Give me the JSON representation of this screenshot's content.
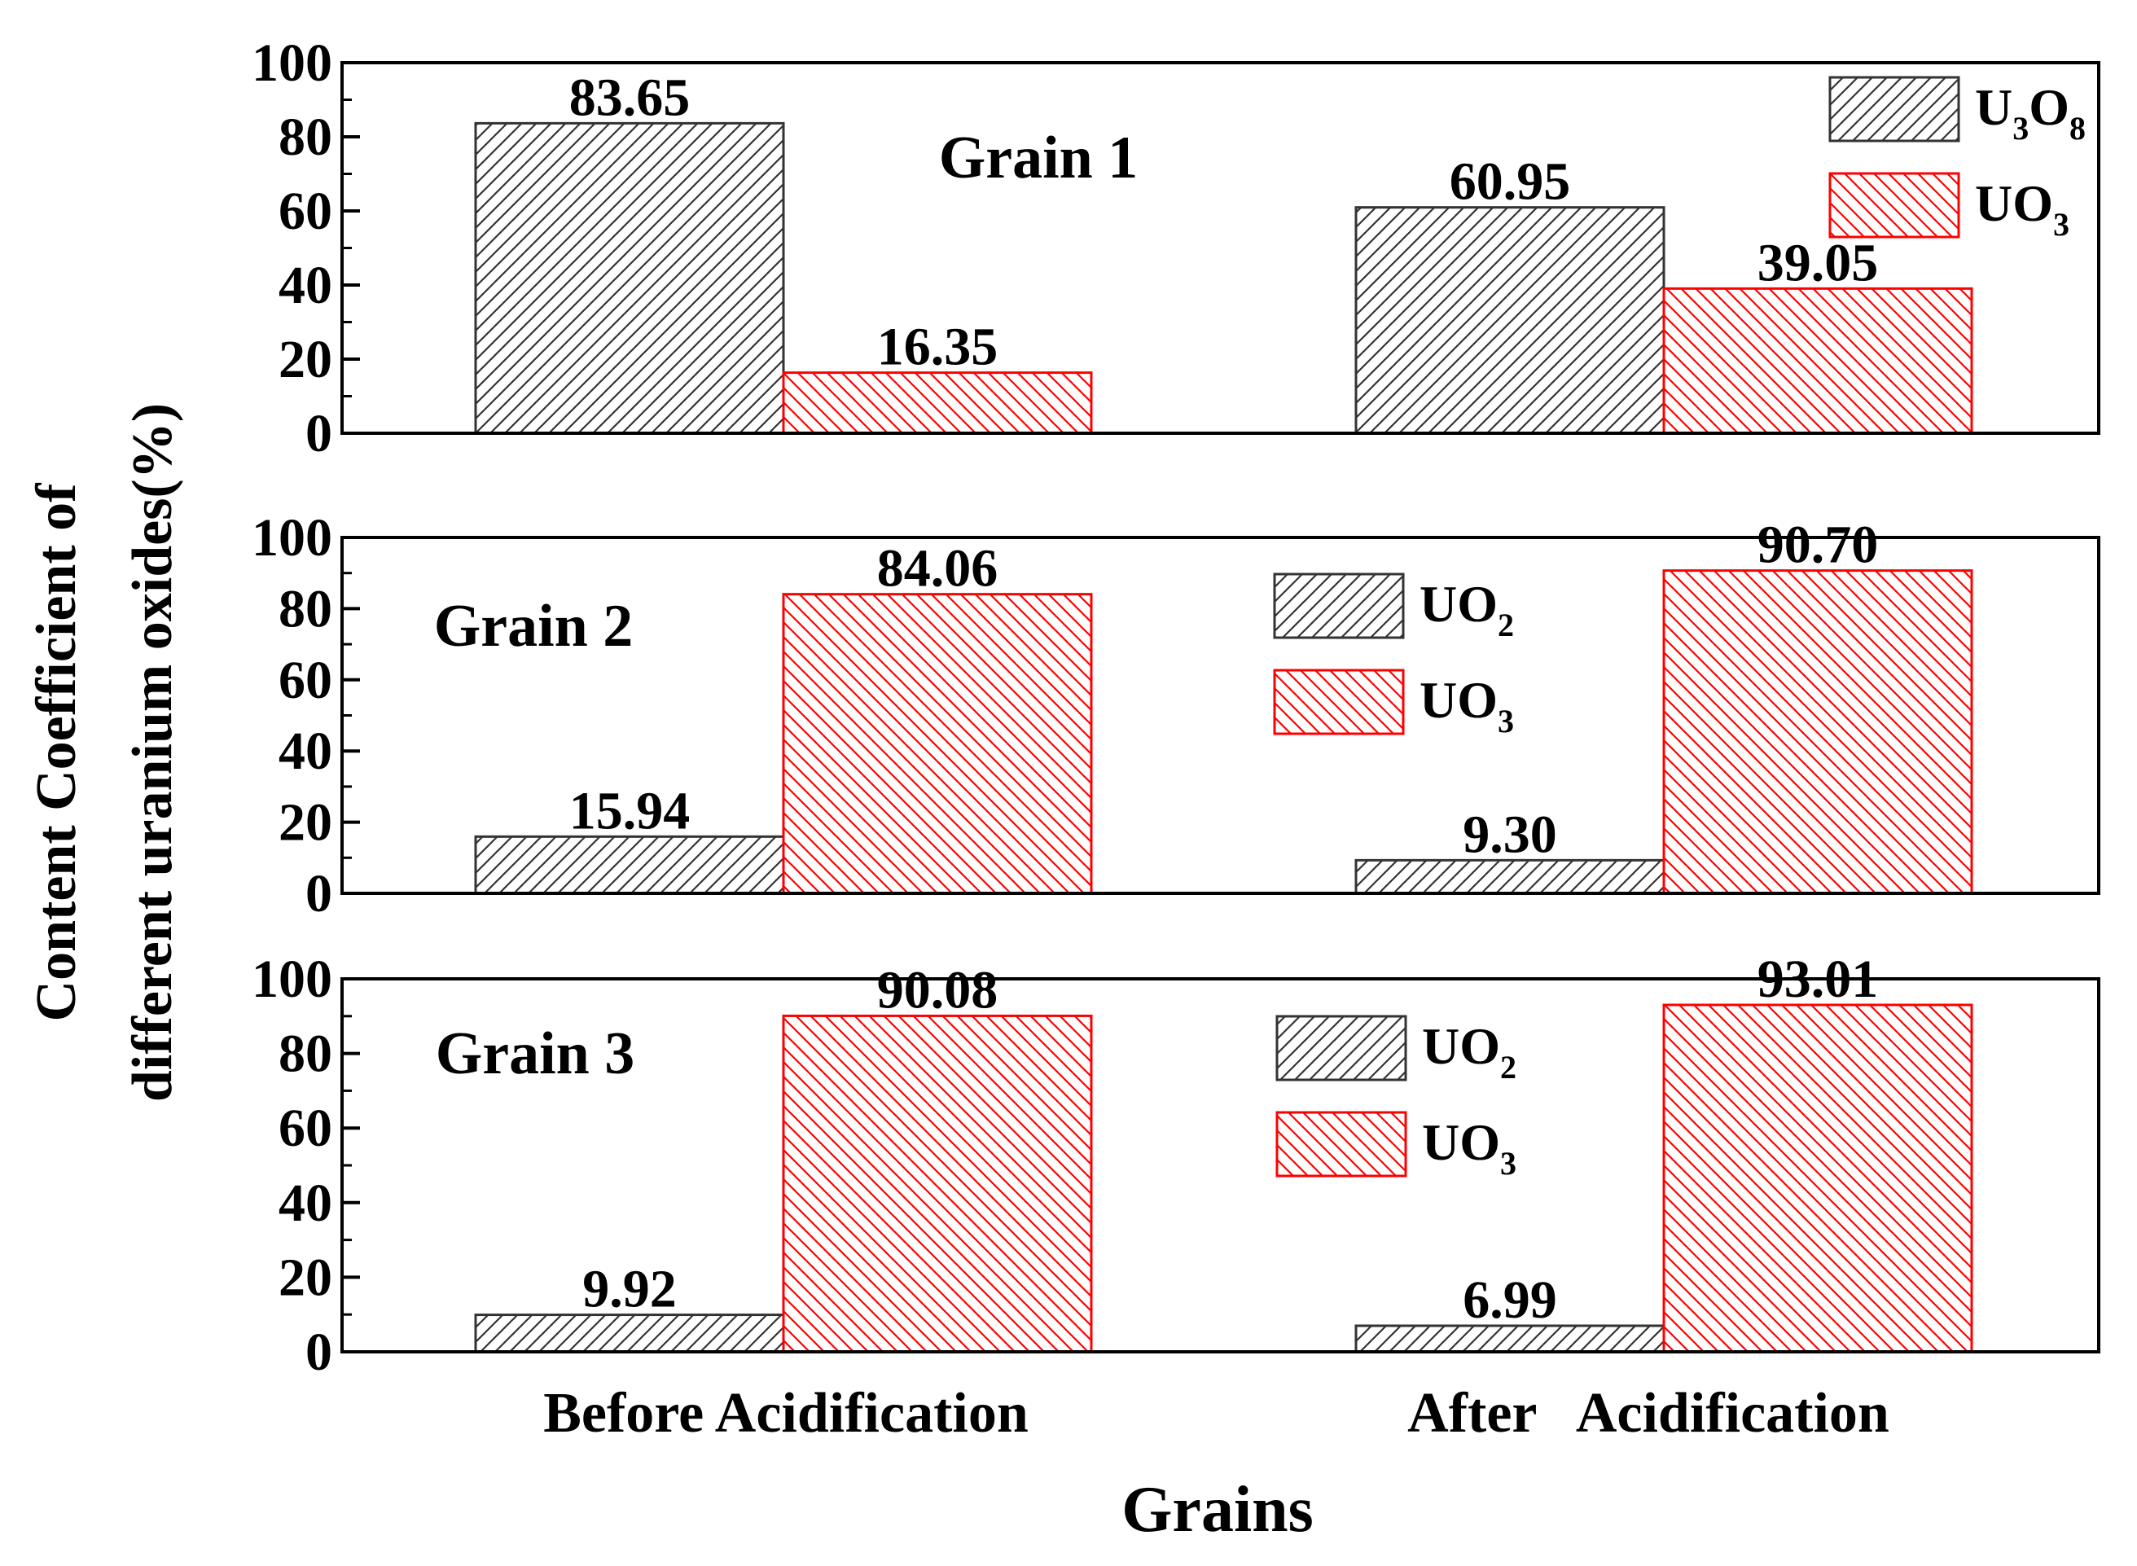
{
  "chart_data": [
    {
      "type": "bar",
      "panel_label": "Grain 1",
      "categories": [
        "Before Acidification",
        "After Acidification"
      ],
      "series": [
        {
          "name": "U3O8",
          "legend": {
            "base": "U",
            "sub1": "3",
            "mid": "O",
            "sub2": "8"
          },
          "values": [
            83.65,
            60.95
          ],
          "labels": [
            "83.65",
            "60.95"
          ],
          "color": "#333333",
          "hatch": "fwd"
        },
        {
          "name": "UO3",
          "legend": {
            "base": "UO",
            "sub1": "3",
            "mid": "",
            "sub2": ""
          },
          "values": [
            16.35,
            39.05
          ],
          "labels": [
            "16.35",
            "39.05"
          ],
          "color": "#ff0000",
          "hatch": "back"
        }
      ],
      "ylim": [
        0,
        100
      ],
      "yticks": [
        "0",
        "20",
        "40",
        "60",
        "80",
        "100"
      ],
      "legend_position": "top-right"
    },
    {
      "type": "bar",
      "panel_label": "Grain 2",
      "categories": [
        "Before Acidification",
        "After Acidification"
      ],
      "series": [
        {
          "name": "UO2",
          "legend": {
            "base": "UO",
            "sub1": "2",
            "mid": "",
            "sub2": ""
          },
          "values": [
            15.94,
            9.3
          ],
          "labels": [
            "15.94",
            "9.30"
          ],
          "color": "#333333",
          "hatch": "fwd"
        },
        {
          "name": "UO3",
          "legend": {
            "base": "UO",
            "sub1": "3",
            "mid": "",
            "sub2": ""
          },
          "values": [
            84.06,
            90.7
          ],
          "labels": [
            "84.06",
            "90.70"
          ],
          "color": "#ff0000",
          "hatch": "back"
        }
      ],
      "ylim": [
        0,
        100
      ],
      "yticks": [
        "0",
        "20",
        "40",
        "60",
        "80",
        "100"
      ],
      "legend_position": "center"
    },
    {
      "type": "bar",
      "panel_label": "Grain 3",
      "categories": [
        "Before Acidification",
        "After Acidification"
      ],
      "series": [
        {
          "name": "UO2",
          "legend": {
            "base": "UO",
            "sub1": "2",
            "mid": "",
            "sub2": ""
          },
          "values": [
            9.92,
            6.99
          ],
          "labels": [
            "9.92",
            "6.99"
          ],
          "color": "#333333",
          "hatch": "fwd"
        },
        {
          "name": "UO3",
          "legend": {
            "base": "UO",
            "sub1": "3",
            "mid": "",
            "sub2": ""
          },
          "values": [
            90.08,
            93.01
          ],
          "labels": [
            "90.08",
            "93.01"
          ],
          "color": "#ff0000",
          "hatch": "back"
        }
      ],
      "ylim": [
        0,
        100
      ],
      "yticks": [
        "0",
        "20",
        "40",
        "60",
        "80",
        "100"
      ],
      "legend_position": "center"
    }
  ],
  "axes": {
    "ylabel_line1": "Content Coefficient of",
    "ylabel_line2": "different uranium oxides(%)",
    "xlabel": "Grains",
    "xticks": [
      "Before Acidification",
      "After   Acidification"
    ]
  }
}
